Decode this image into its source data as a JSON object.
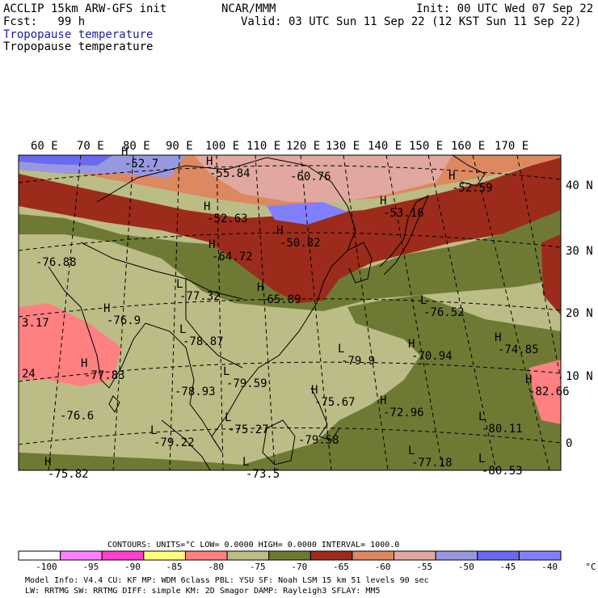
{
  "header": {
    "model_name": "ACCLIP 15km ARW-GFS init",
    "forecast_hour": "Fcst:   99 h",
    "org": "NCAR/MMM",
    "init_time": "Init: 00 UTC Wed 07 Sep 22",
    "valid_time": "Valid: 03 UTC Sun 11 Sep 22 (12 KST Sun 11 Sep 22)",
    "field_title_blue": "Tropopause temperature",
    "field_title_black": "Tropopause temperature"
  },
  "map": {
    "lon_labels": [
      "60 E",
      "70 E",
      "80 E",
      "90 E",
      "100 E",
      "110 E",
      "120 E",
      "130 E",
      "140 E",
      "150 E",
      "160 E",
      "170 E"
    ],
    "lat_labels": [
      "40 N",
      "30 N",
      "20 N",
      "10 N",
      "0"
    ],
    "extrema": [
      {
        "kind": "H",
        "value": "-52.7"
      },
      {
        "kind": "H",
        "value": "-55.84"
      },
      {
        "kind": "",
        "value": "-60.76"
      },
      {
        "kind": "H",
        "value": "-52.59"
      },
      {
        "kind": "H",
        "value": "-52.63"
      },
      {
        "kind": "H",
        "value": "-53.16"
      },
      {
        "kind": "H",
        "value": "-50.82"
      },
      {
        "kind": "H",
        "value": "-64.72"
      },
      {
        "kind": "",
        "value": "-76.88"
      },
      {
        "kind": "L",
        "value": "-77.32"
      },
      {
        "kind": "H",
        "value": "-65.89"
      },
      {
        "kind": "L",
        "value": "-76.52"
      },
      {
        "kind": "H",
        "value": "-76.9"
      },
      {
        "kind": "",
        "value": "3.17"
      },
      {
        "kind": "L",
        "value": "-78.87"
      },
      {
        "kind": "L",
        "value": "-79.9"
      },
      {
        "kind": "H",
        "value": "-70.94"
      },
      {
        "kind": "H",
        "value": "-74.85"
      },
      {
        "kind": "H",
        "value": "-77.83"
      },
      {
        "kind": "",
        "value": "24"
      },
      {
        "kind": "L",
        "value": "-79.59"
      },
      {
        "kind": "H",
        "value": "-82.66"
      },
      {
        "kind": "",
        "value": "-78.93"
      },
      {
        "kind": "H",
        "value": "-75.67"
      },
      {
        "kind": "H",
        "value": "-72.96"
      },
      {
        "kind": "",
        "value": "-76.6"
      },
      {
        "kind": "L",
        "value": "-75.27"
      },
      {
        "kind": "L",
        "value": "-80.11"
      },
      {
        "kind": "L",
        "value": "-79.22"
      },
      {
        "kind": "",
        "value": "-79.58"
      },
      {
        "kind": "L",
        "value": "-77.18"
      },
      {
        "kind": "L",
        "value": "-80.53"
      },
      {
        "kind": "H",
        "value": "-75.82"
      },
      {
        "kind": "L",
        "value": "-73.5"
      }
    ]
  },
  "legend": {
    "contours_line": "CONTOURS:  UNITS=°C  LOW=  0.0000      HIGH=  0.0000      INTERVAL=   1000.0",
    "tick_labels": [
      "-100",
      "-95",
      "-90",
      "-85",
      "-80",
      "-75",
      "-70",
      "-65",
      "-60",
      "-55",
      "-50",
      "-45",
      "-40",
      "°C"
    ],
    "colors": [
      "#ffffff",
      "#ff80ff",
      "#ff40d0",
      "#ffff80",
      "#ff8080",
      "#bcbc86",
      "#6e7a34",
      "#9c2b1c",
      "#dc8860",
      "#e0a8a0",
      "#9898e0",
      "#6a6af0",
      "#8080ff"
    ],
    "model_info_1": "Model Info: V4.4     CU: KF      MP: WDM 6class  PBL: YSU     SF: Noah LSM    15 km   51 levels   90 sec",
    "model_info_2": "                     LW: RRTMG   SW: RRTMG  DIFF: simple KM: 2D Smagor DAMP: Rayleigh3  SFLAY: MM5"
  }
}
